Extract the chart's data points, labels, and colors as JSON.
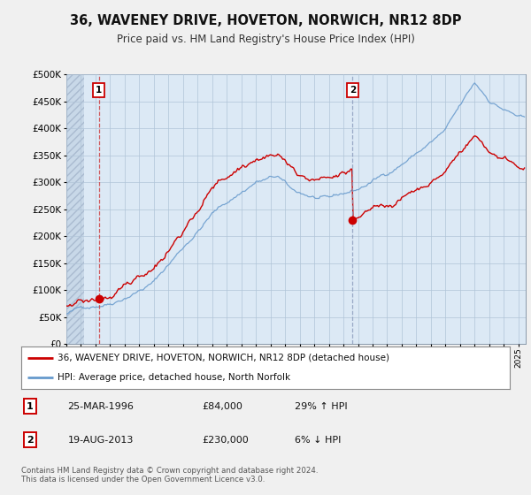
{
  "title": "36, WAVENEY DRIVE, HOVETON, NORWICH, NR12 8DP",
  "subtitle": "Price paid vs. HM Land Registry's House Price Index (HPI)",
  "legend_label_red": "36, WAVENEY DRIVE, HOVETON, NORWICH, NR12 8DP (detached house)",
  "legend_label_blue": "HPI: Average price, detached house, North Norfolk",
  "sale1_date": "25-MAR-1996",
  "sale1_price": 84000,
  "sale1_pct": "29% ↑ HPI",
  "sale2_date": "19-AUG-2013",
  "sale2_price": 230000,
  "sale2_pct": "6% ↓ HPI",
  "footer": "Contains HM Land Registry data © Crown copyright and database right 2024.\nThis data is licensed under the Open Government Licence v3.0.",
  "ylim": [
    0,
    500000
  ],
  "xlim_start": 1994.0,
  "xlim_end": 2025.5,
  "sale1_year": 1996.23,
  "sale2_year": 2013.63,
  "bg_color": "#f0f0f0",
  "plot_bg": "#dce9f5",
  "hatch_bg": "#c8d8e8",
  "red_color": "#cc0000",
  "blue_color": "#6699cc",
  "vline1_color": "#cc3333",
  "vline2_color": "#8899bb"
}
